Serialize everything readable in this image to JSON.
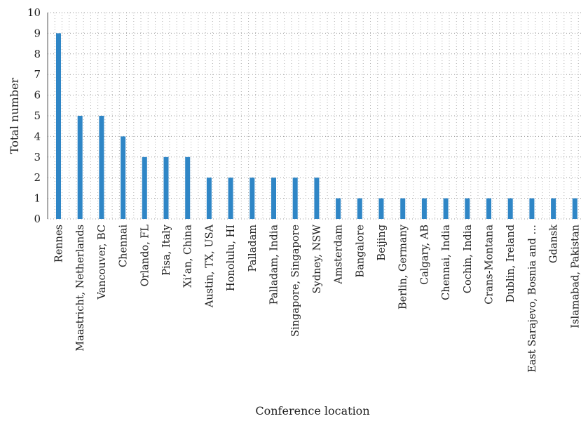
{
  "chart_data": {
    "type": "bar",
    "title": "",
    "xlabel": "Conference location",
    "ylabel": "Total number",
    "ylim": [
      0,
      10
    ],
    "yticks": [
      "0",
      "1",
      "2",
      "3",
      "4",
      "5",
      "6",
      "7",
      "8",
      "9",
      "10"
    ],
    "grid": "dotted",
    "bar_color": "#2f86c6",
    "categories": [
      "Rennes",
      "Maastricht, Netherlands",
      "Vancouver, BC",
      "Chennai",
      "Orlando, FL",
      "Pisa, Italy",
      "Xi’an, China",
      "Austin, TX, USA",
      "Honolulu, HI",
      "Palladam",
      "Palladam, India",
      "Singapore, Singapore",
      "Sydney, NSW",
      "Amsterdam",
      "Bangalore",
      "Beijing",
      "Berlin, Germany",
      "Calgary, AB",
      "Chennai, India",
      "Cochin, India",
      "Crans-Montana",
      "Dublin, Ireland",
      "East Sarajevo, Bosnia and …",
      "Gdansk",
      "Islamabad, Pakistan"
    ],
    "values": [
      9,
      5,
      5,
      4,
      3,
      3,
      3,
      2,
      2,
      2,
      2,
      2,
      2,
      1,
      1,
      1,
      1,
      1,
      1,
      1,
      1,
      1,
      1,
      1,
      1
    ]
  }
}
